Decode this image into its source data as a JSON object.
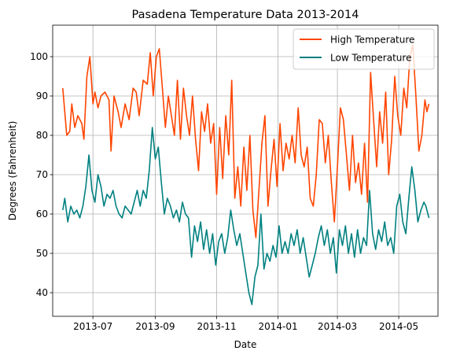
{
  "chart_data": {
    "type": "line",
    "title": "Pasadena Temperature Data 2013-2014",
    "xlabel": "Date",
    "ylabel": "Degrees (Fahrenheit)",
    "x_range": [
      "2013-05-22",
      "2014-06-09"
    ],
    "ylim": [
      34,
      108
    ],
    "grid": true,
    "legend_position": "top-right",
    "x_ticks": [
      "2013-07-01",
      "2013-09-01",
      "2013-11-01",
      "2014-01-01",
      "2014-03-01",
      "2014-05-01"
    ],
    "x_tick_labels": [
      "2013-07",
      "2013-09",
      "2013-11",
      "2014-01",
      "2014-03",
      "2014-05"
    ],
    "y_ticks": [
      40,
      50,
      60,
      70,
      80,
      90,
      100
    ],
    "y_tick_labels": [
      "40",
      "50",
      "60",
      "70",
      "80",
      "90",
      "100"
    ],
    "series": [
      {
        "name": "High Temperature",
        "color": "#ff4500",
        "points": [
          [
            "2013-06-01",
            92
          ],
          [
            "2013-06-05",
            80
          ],
          [
            "2013-06-08",
            81
          ],
          [
            "2013-06-10",
            88
          ],
          [
            "2013-06-13",
            82
          ],
          [
            "2013-06-16",
            85
          ],
          [
            "2013-06-20",
            83
          ],
          [
            "2013-06-22",
            79
          ],
          [
            "2013-06-25",
            95
          ],
          [
            "2013-06-28",
            100
          ],
          [
            "2013-07-01",
            88
          ],
          [
            "2013-07-03",
            91
          ],
          [
            "2013-07-06",
            87
          ],
          [
            "2013-07-09",
            90
          ],
          [
            "2013-07-13",
            91
          ],
          [
            "2013-07-17",
            89
          ],
          [
            "2013-07-19",
            76
          ],
          [
            "2013-07-22",
            90
          ],
          [
            "2013-07-26",
            86
          ],
          [
            "2013-07-29",
            82
          ],
          [
            "2013-08-02",
            88
          ],
          [
            "2013-08-06",
            84
          ],
          [
            "2013-08-10",
            92
          ],
          [
            "2013-08-13",
            91
          ],
          [
            "2013-08-16",
            85
          ],
          [
            "2013-08-20",
            94
          ],
          [
            "2013-08-24",
            93
          ],
          [
            "2013-08-27",
            101
          ],
          [
            "2013-08-30",
            90
          ],
          [
            "2013-09-02",
            100
          ],
          [
            "2013-09-05",
            102
          ],
          [
            "2013-09-08",
            92
          ],
          [
            "2013-09-11",
            82
          ],
          [
            "2013-09-14",
            90
          ],
          [
            "2013-09-17",
            85
          ],
          [
            "2013-09-20",
            80
          ],
          [
            "2013-09-23",
            94
          ],
          [
            "2013-09-26",
            79
          ],
          [
            "2013-09-29",
            92
          ],
          [
            "2013-10-02",
            85
          ],
          [
            "2013-10-05",
            80
          ],
          [
            "2013-10-08",
            90
          ],
          [
            "2013-10-11",
            79
          ],
          [
            "2013-10-14",
            71
          ],
          [
            "2013-10-17",
            86
          ],
          [
            "2013-10-20",
            81
          ],
          [
            "2013-10-23",
            88
          ],
          [
            "2013-10-26",
            78
          ],
          [
            "2013-10-29",
            83
          ],
          [
            "2013-11-01",
            65
          ],
          [
            "2013-11-04",
            82
          ],
          [
            "2013-11-07",
            69
          ],
          [
            "2013-11-10",
            85
          ],
          [
            "2013-11-13",
            75
          ],
          [
            "2013-11-16",
            94
          ],
          [
            "2013-11-19",
            64
          ],
          [
            "2013-11-22",
            72
          ],
          [
            "2013-11-25",
            62
          ],
          [
            "2013-11-28",
            77
          ],
          [
            "2013-12-01",
            66
          ],
          [
            "2013-12-04",
            80
          ],
          [
            "2013-12-07",
            61
          ],
          [
            "2013-12-10",
            54
          ],
          [
            "2013-12-13",
            66
          ],
          [
            "2013-12-16",
            78
          ],
          [
            "2013-12-19",
            85
          ],
          [
            "2013-12-22",
            62
          ],
          [
            "2013-12-25",
            71
          ],
          [
            "2013-12-28",
            79
          ],
          [
            "2013-12-31",
            67
          ],
          [
            "2014-01-03",
            83
          ],
          [
            "2014-01-06",
            71
          ],
          [
            "2014-01-09",
            78
          ],
          [
            "2014-01-12",
            74
          ],
          [
            "2014-01-15",
            80
          ],
          [
            "2014-01-18",
            73
          ],
          [
            "2014-01-21",
            87
          ],
          [
            "2014-01-24",
            75
          ],
          [
            "2014-01-27",
            72
          ],
          [
            "2014-01-30",
            77
          ],
          [
            "2014-02-02",
            64
          ],
          [
            "2014-02-05",
            62
          ],
          [
            "2014-02-08",
            70
          ],
          [
            "2014-02-11",
            84
          ],
          [
            "2014-02-14",
            83
          ],
          [
            "2014-02-17",
            73
          ],
          [
            "2014-02-20",
            80
          ],
          [
            "2014-02-23",
            68
          ],
          [
            "2014-02-26",
            58
          ],
          [
            "2014-03-01",
            72
          ],
          [
            "2014-03-04",
            87
          ],
          [
            "2014-03-07",
            84
          ],
          [
            "2014-03-10",
            75
          ],
          [
            "2014-03-13",
            66
          ],
          [
            "2014-03-16",
            80
          ],
          [
            "2014-03-19",
            68
          ],
          [
            "2014-03-22",
            73
          ],
          [
            "2014-03-25",
            65
          ],
          [
            "2014-03-28",
            78
          ],
          [
            "2014-03-31",
            63
          ],
          [
            "2014-04-03",
            96
          ],
          [
            "2014-04-06",
            84
          ],
          [
            "2014-04-09",
            72
          ],
          [
            "2014-04-12",
            86
          ],
          [
            "2014-04-15",
            78
          ],
          [
            "2014-04-18",
            91
          ],
          [
            "2014-04-21",
            70
          ],
          [
            "2014-04-24",
            79
          ],
          [
            "2014-04-27",
            95
          ],
          [
            "2014-04-30",
            85
          ],
          [
            "2014-05-03",
            80
          ],
          [
            "2014-05-06",
            92
          ],
          [
            "2014-05-09",
            87
          ],
          [
            "2014-05-12",
            100
          ],
          [
            "2014-05-15",
            103
          ],
          [
            "2014-05-18",
            90
          ],
          [
            "2014-05-21",
            76
          ],
          [
            "2014-05-24",
            80
          ],
          [
            "2014-05-27",
            89
          ],
          [
            "2014-05-29",
            86
          ],
          [
            "2014-05-31",
            88
          ]
        ]
      },
      {
        "name": "Low Temperature",
        "color": "#008080",
        "points": [
          [
            "2013-06-01",
            61
          ],
          [
            "2013-06-03",
            64
          ],
          [
            "2013-06-06",
            58
          ],
          [
            "2013-06-09",
            62
          ],
          [
            "2013-06-12",
            60
          ],
          [
            "2013-06-15",
            61
          ],
          [
            "2013-06-18",
            59
          ],
          [
            "2013-06-21",
            62
          ],
          [
            "2013-06-24",
            67
          ],
          [
            "2013-06-27",
            75
          ],
          [
            "2013-06-30",
            66
          ],
          [
            "2013-07-03",
            63
          ],
          [
            "2013-07-06",
            70
          ],
          [
            "2013-07-09",
            67
          ],
          [
            "2013-07-12",
            62
          ],
          [
            "2013-07-15",
            65
          ],
          [
            "2013-07-18",
            64
          ],
          [
            "2013-07-21",
            66
          ],
          [
            "2013-07-24",
            62
          ],
          [
            "2013-07-27",
            60
          ],
          [
            "2013-07-30",
            59
          ],
          [
            "2013-08-02",
            62
          ],
          [
            "2013-08-05",
            61
          ],
          [
            "2013-08-08",
            60
          ],
          [
            "2013-08-11",
            63
          ],
          [
            "2013-08-14",
            66
          ],
          [
            "2013-08-17",
            62
          ],
          [
            "2013-08-20",
            66
          ],
          [
            "2013-08-23",
            64
          ],
          [
            "2013-08-26",
            71
          ],
          [
            "2013-08-29",
            82
          ],
          [
            "2013-09-01",
            74
          ],
          [
            "2013-09-04",
            77
          ],
          [
            "2013-09-07",
            68
          ],
          [
            "2013-09-10",
            60
          ],
          [
            "2013-09-13",
            64
          ],
          [
            "2013-09-16",
            62
          ],
          [
            "2013-09-19",
            59
          ],
          [
            "2013-09-22",
            61
          ],
          [
            "2013-09-25",
            58
          ],
          [
            "2013-09-28",
            63
          ],
          [
            "2013-10-01",
            60
          ],
          [
            "2013-10-04",
            59
          ],
          [
            "2013-10-07",
            49
          ],
          [
            "2013-10-10",
            57
          ],
          [
            "2013-10-13",
            53
          ],
          [
            "2013-10-16",
            58
          ],
          [
            "2013-10-19",
            51
          ],
          [
            "2013-10-22",
            56
          ],
          [
            "2013-10-25",
            50
          ],
          [
            "2013-10-28",
            55
          ],
          [
            "2013-10-31",
            47
          ],
          [
            "2013-11-03",
            53
          ],
          [
            "2013-11-06",
            55
          ],
          [
            "2013-11-09",
            50
          ],
          [
            "2013-11-12",
            54
          ],
          [
            "2013-11-15",
            61
          ],
          [
            "2013-11-18",
            56
          ],
          [
            "2013-11-21",
            52
          ],
          [
            "2013-11-24",
            55
          ],
          [
            "2013-11-27",
            50
          ],
          [
            "2013-11-30",
            45
          ],
          [
            "2013-12-03",
            40
          ],
          [
            "2013-12-06",
            37
          ],
          [
            "2013-12-09",
            44
          ],
          [
            "2013-12-12",
            47
          ],
          [
            "2013-12-15",
            60
          ],
          [
            "2013-12-18",
            46
          ],
          [
            "2013-12-21",
            50
          ],
          [
            "2013-12-24",
            48
          ],
          [
            "2013-12-27",
            52
          ],
          [
            "2013-12-30",
            49
          ],
          [
            "2014-01-02",
            57
          ],
          [
            "2014-01-05",
            50
          ],
          [
            "2014-01-08",
            53
          ],
          [
            "2014-01-11",
            50
          ],
          [
            "2014-01-14",
            55
          ],
          [
            "2014-01-17",
            52
          ],
          [
            "2014-01-20",
            56
          ],
          [
            "2014-01-23",
            50
          ],
          [
            "2014-01-26",
            54
          ],
          [
            "2014-01-29",
            49
          ],
          [
            "2014-02-01",
            44
          ],
          [
            "2014-02-04",
            47
          ],
          [
            "2014-02-07",
            50
          ],
          [
            "2014-02-10",
            54
          ],
          [
            "2014-02-13",
            57
          ],
          [
            "2014-02-16",
            52
          ],
          [
            "2014-02-19",
            56
          ],
          [
            "2014-02-22",
            50
          ],
          [
            "2014-02-25",
            54
          ],
          [
            "2014-02-28",
            45
          ],
          [
            "2014-03-03",
            56
          ],
          [
            "2014-03-06",
            52
          ],
          [
            "2014-03-09",
            57
          ],
          [
            "2014-03-12",
            50
          ],
          [
            "2014-03-15",
            55
          ],
          [
            "2014-03-18",
            49
          ],
          [
            "2014-03-21",
            56
          ],
          [
            "2014-03-24",
            50
          ],
          [
            "2014-03-27",
            54
          ],
          [
            "2014-03-30",
            52
          ],
          [
            "2014-04-02",
            66
          ],
          [
            "2014-04-05",
            55
          ],
          [
            "2014-04-08",
            51
          ],
          [
            "2014-04-11",
            56
          ],
          [
            "2014-04-14",
            53
          ],
          [
            "2014-04-17",
            58
          ],
          [
            "2014-04-20",
            52
          ],
          [
            "2014-04-23",
            54
          ],
          [
            "2014-04-26",
            50
          ],
          [
            "2014-04-29",
            62
          ],
          [
            "2014-05-02",
            65
          ],
          [
            "2014-05-05",
            58
          ],
          [
            "2014-05-08",
            55
          ],
          [
            "2014-05-11",
            64
          ],
          [
            "2014-05-14",
            72
          ],
          [
            "2014-05-17",
            66
          ],
          [
            "2014-05-20",
            58
          ],
          [
            "2014-05-23",
            61
          ],
          [
            "2014-05-26",
            63
          ],
          [
            "2014-05-28",
            62
          ],
          [
            "2014-05-31",
            59
          ]
        ]
      }
    ]
  }
}
